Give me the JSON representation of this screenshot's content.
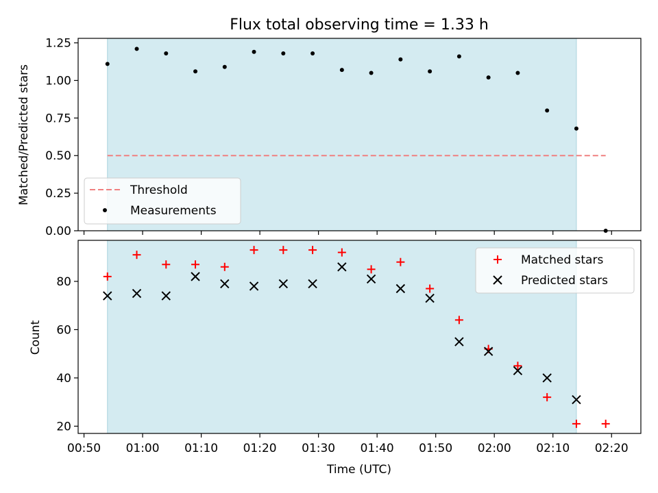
{
  "chart_data": [
    {
      "type": "scatter",
      "title": "Flux total observing time = 1.33 h",
      "xlabel": "",
      "ylabel": "Matched/Predicted stars",
      "ylim": [
        0,
        1.28
      ],
      "yticks": [
        "0.00",
        "0.25",
        "0.50",
        "0.75",
        "1.00",
        "1.25"
      ],
      "x_range": [
        "00:49",
        "02:25"
      ],
      "shaded_span": [
        "00:54",
        "02:14"
      ],
      "threshold": {
        "name": "Threshold",
        "value": 0.5,
        "x_from": "00:54",
        "x_to": "02:19"
      },
      "series": [
        {
          "name": "Measurements",
          "x": [
            "00:54",
            "00:59",
            "01:04",
            "01:09",
            "01:14",
            "01:19",
            "01:24",
            "01:29",
            "01:34",
            "01:39",
            "01:44",
            "01:49",
            "01:54",
            "01:59",
            "02:04",
            "02:09",
            "02:14",
            "02:19"
          ],
          "values": [
            1.11,
            1.21,
            1.18,
            1.06,
            1.09,
            1.19,
            1.18,
            1.18,
            1.07,
            1.05,
            1.14,
            1.06,
            1.16,
            1.02,
            1.05,
            0.8,
            0.68,
            0.0
          ]
        }
      ],
      "legend": "lower-left",
      "grid": false
    },
    {
      "type": "scatter",
      "title": "",
      "xlabel": "Time (UTC)",
      "ylabel": "Count",
      "ylim": [
        17,
        97
      ],
      "yticks": [
        "20",
        "40",
        "60",
        "80"
      ],
      "x_range": [
        "00:49",
        "02:25"
      ],
      "xticks": [
        "00:50",
        "01:00",
        "01:10",
        "01:20",
        "01:30",
        "01:40",
        "01:50",
        "02:00",
        "02:10",
        "02:20"
      ],
      "shaded_span": [
        "00:54",
        "02:14"
      ],
      "series": [
        {
          "name": "Matched stars",
          "marker": "plus",
          "color": "#ff0000",
          "x": [
            "00:54",
            "00:59",
            "01:04",
            "01:09",
            "01:14",
            "01:19",
            "01:24",
            "01:29",
            "01:34",
            "01:39",
            "01:44",
            "01:49",
            "01:54",
            "01:59",
            "02:04",
            "02:09",
            "02:14",
            "02:19"
          ],
          "values": [
            82,
            91,
            87,
            87,
            86,
            93,
            93,
            93,
            92,
            85,
            88,
            77,
            64,
            52,
            45,
            32,
            21,
            21
          ]
        },
        {
          "name": "Predicted stars",
          "marker": "x",
          "color": "#000000",
          "x": [
            "00:54",
            "00:59",
            "01:04",
            "01:09",
            "01:14",
            "01:19",
            "01:24",
            "01:29",
            "01:34",
            "01:39",
            "01:44",
            "01:49",
            "01:54",
            "01:59",
            "02:04",
            "02:09",
            "02:14"
          ],
          "values": [
            74,
            75,
            74,
            82,
            79,
            78,
            79,
            79,
            86,
            81,
            77,
            73,
            55,
            51,
            43,
            40,
            31
          ]
        }
      ],
      "legend": "upper-right",
      "grid": false
    }
  ],
  "colors": {
    "shade": "#d4ebf1",
    "shade_edge": "#a9d2de",
    "threshold": "#f08080",
    "matched": "#ff0000",
    "predicted": "#000000",
    "measurement": "#000000"
  }
}
